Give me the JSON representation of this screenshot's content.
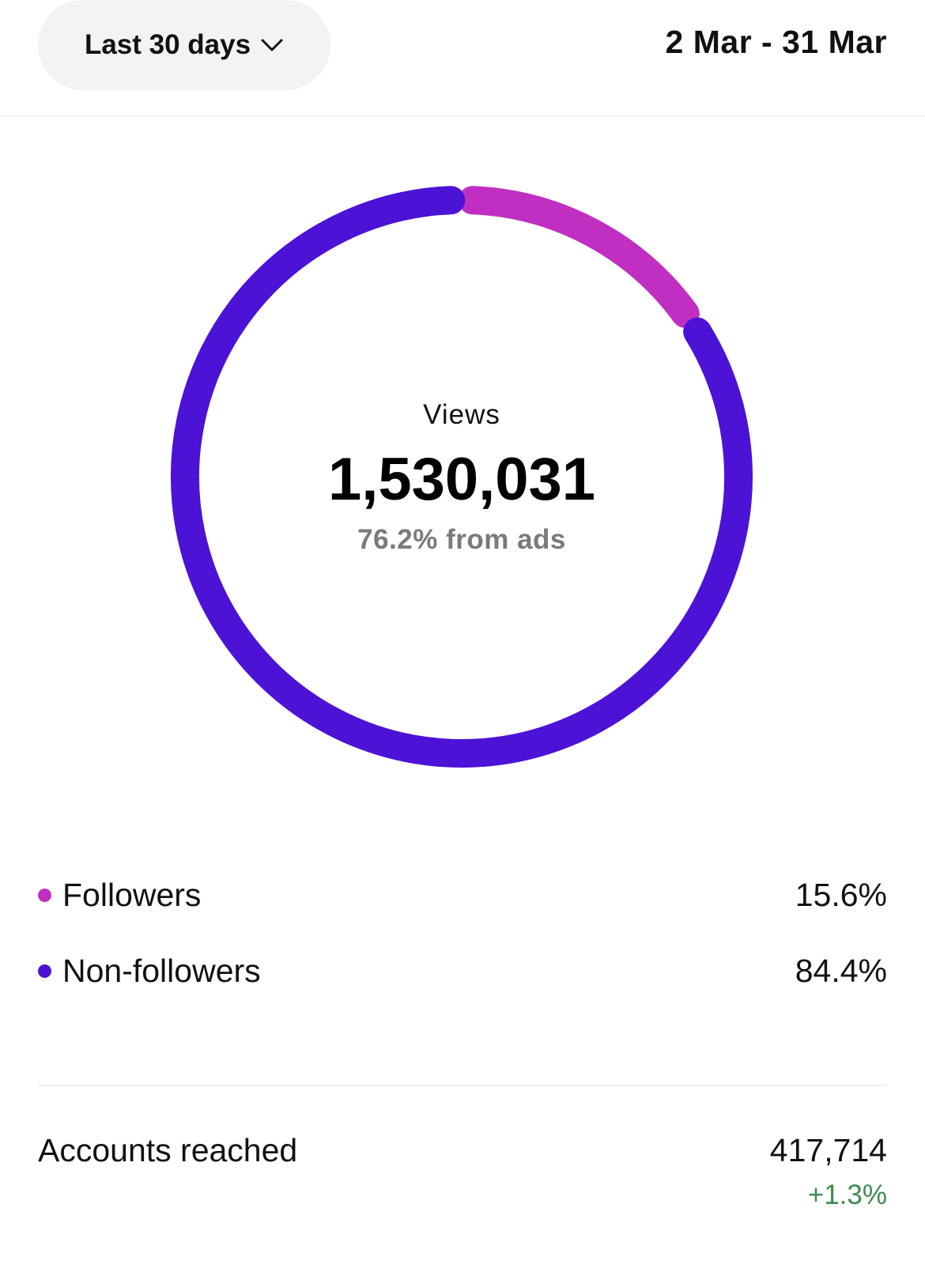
{
  "header": {
    "range_label": "Last 30 days",
    "date_range": "2 Mar - 31 Mar"
  },
  "views": {
    "label": "Views",
    "total": "1,530,031",
    "ads_note": "76.2% from ads"
  },
  "breakdown": [
    {
      "label": "Followers",
      "percent_text": "15.6%",
      "value": 15.6,
      "color": "#c02fc1"
    },
    {
      "label": "Non-followers",
      "percent_text": "84.4%",
      "value": 84.4,
      "color": "#4c12d6"
    }
  ],
  "reach": {
    "label": "Accounts reached",
    "value": "417,714",
    "change": "+1.3%"
  }
}
